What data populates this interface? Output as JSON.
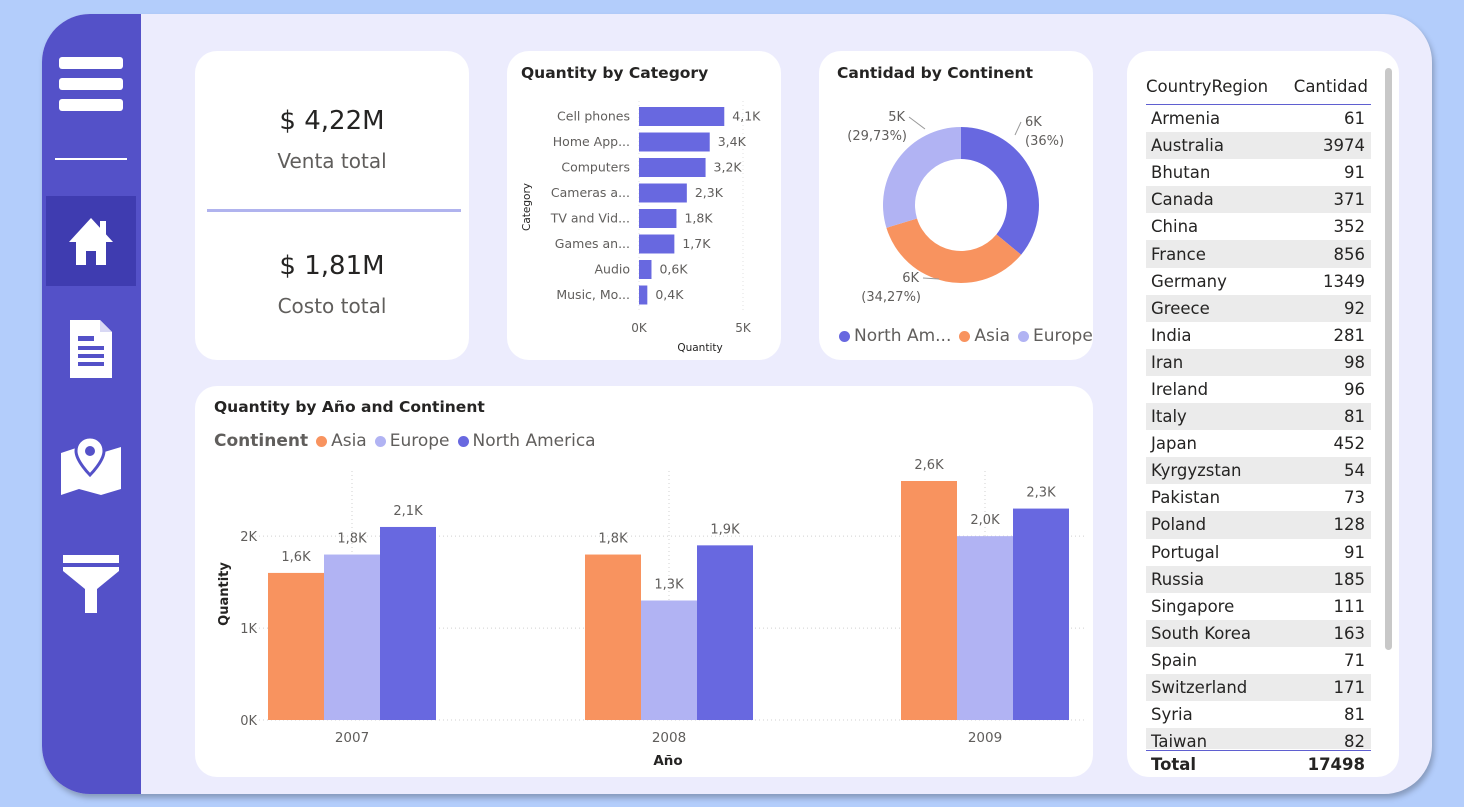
{
  "colors": {
    "accent": "#6868e0",
    "asia": "#f8935f",
    "europe": "#b1b3f3",
    "north_america": "#6868e0",
    "sidebar": "#5451c8",
    "background": "#b3cdfb"
  },
  "sidebar": {
    "items": [
      {
        "icon": "home-icon"
      },
      {
        "icon": "report-icon"
      },
      {
        "icon": "map-icon"
      },
      {
        "icon": "filter-icon"
      }
    ]
  },
  "kpi": {
    "sales_value": "$ 4,22M",
    "sales_label": "Venta total",
    "cost_value": "$ 1,81M",
    "cost_label": "Costo total"
  },
  "category_chart": {
    "title": "Quantity by Category",
    "ylabel": "Category",
    "xlabel": "Quantity",
    "x_ticks": [
      "0K",
      "5K"
    ]
  },
  "continent_chart": {
    "title": "Cantidad by Continent",
    "legend": [
      "North Am...",
      "Asia",
      "Europe"
    ]
  },
  "year_chart": {
    "title": "Quantity by Año and Continent",
    "legend_title": "Continent",
    "legend": [
      "Asia",
      "Europe",
      "North America"
    ],
    "ylabel": "Quantity",
    "xlabel": "Año",
    "y_ticks": [
      "0K",
      "1K",
      "2K"
    ]
  },
  "country_table": {
    "headers": [
      "CountryRegion",
      "Cantidad"
    ],
    "rows": [
      [
        "Armenia",
        "61"
      ],
      [
        "Australia",
        "3974"
      ],
      [
        "Bhutan",
        "91"
      ],
      [
        "Canada",
        "371"
      ],
      [
        "China",
        "352"
      ],
      [
        "France",
        "856"
      ],
      [
        "Germany",
        "1349"
      ],
      [
        "Greece",
        "92"
      ],
      [
        "India",
        "281"
      ],
      [
        "Iran",
        "98"
      ],
      [
        "Ireland",
        "96"
      ],
      [
        "Italy",
        "81"
      ],
      [
        "Japan",
        "452"
      ],
      [
        "Kyrgyzstan",
        "54"
      ],
      [
        "Pakistan",
        "73"
      ],
      [
        "Poland",
        "128"
      ],
      [
        "Portugal",
        "91"
      ],
      [
        "Russia",
        "185"
      ],
      [
        "Singapore",
        "111"
      ],
      [
        "South Korea",
        "163"
      ],
      [
        "Spain",
        "71"
      ],
      [
        "Switzerland",
        "171"
      ],
      [
        "Syria",
        "81"
      ],
      [
        "Taiwan",
        "82"
      ]
    ],
    "total_label": "Total",
    "total_value": "17498"
  },
  "chart_data": [
    {
      "type": "bar",
      "orientation": "horizontal",
      "title": "Quantity by Category",
      "xlabel": "Quantity",
      "ylabel": "Category",
      "categories": [
        "Cell phones",
        "Home App...",
        "Computers",
        "Cameras a...",
        "TV and Vid...",
        "Games an...",
        "Audio",
        "Music, Mo..."
      ],
      "values": [
        4100,
        3400,
        3200,
        2300,
        1800,
        1700,
        600,
        400
      ],
      "data_labels": [
        "4,1K",
        "3,4K",
        "3,2K",
        "2,3K",
        "1,8K",
        "1,7K",
        "0,6K",
        "0,4K"
      ],
      "xlim": [
        0,
        5000
      ],
      "grid": true
    },
    {
      "type": "pie",
      "donut": true,
      "title": "Cantidad by Continent",
      "categories": [
        "North America",
        "Asia",
        "Europe"
      ],
      "values": [
        6000,
        6000,
        5000
      ],
      "percents": [
        36,
        34.27,
        29.73
      ],
      "data_labels": [
        [
          "6K",
          "(36%)"
        ],
        [
          "6K",
          "(34,27%)"
        ],
        [
          "5K",
          "(29,73%)"
        ]
      ],
      "legend_position": "bottom"
    },
    {
      "type": "bar",
      "title": "Quantity by Año and Continent",
      "xlabel": "Año",
      "ylabel": "Quantity",
      "categories": [
        "2007",
        "2008",
        "2009"
      ],
      "series": [
        {
          "name": "Asia",
          "values": [
            1600,
            1800,
            2600
          ],
          "labels": [
            "1,6K",
            "1,8K",
            "2,6K"
          ]
        },
        {
          "name": "Europe",
          "values": [
            1800,
            1300,
            2000
          ],
          "labels": [
            "1,8K",
            "1,3K",
            "2,0K"
          ]
        },
        {
          "name": "North America",
          "values": [
            2100,
            1900,
            2300
          ],
          "labels": [
            "2,1K",
            "1,9K",
            "2,3K"
          ]
        }
      ],
      "ylim": [
        0,
        2600
      ],
      "legend_position": "top-left",
      "grid": true
    }
  ]
}
